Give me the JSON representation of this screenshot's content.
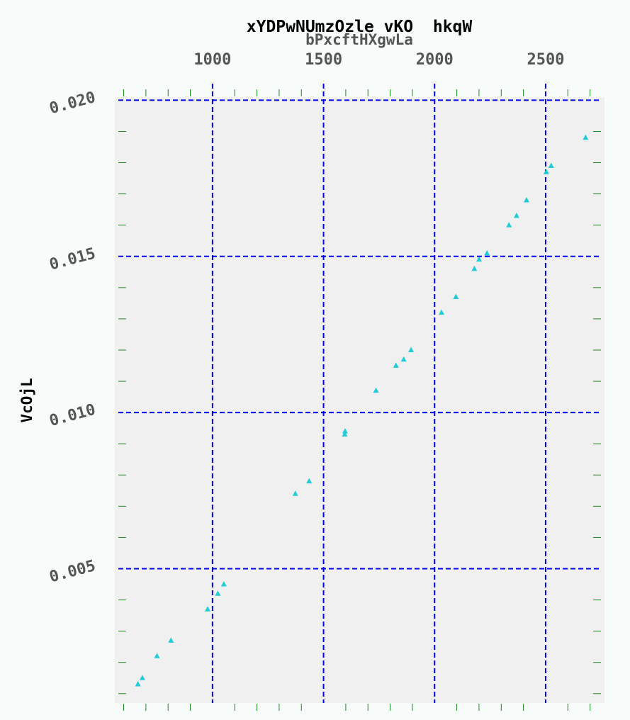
{
  "chart_data": {
    "type": "scatter",
    "title": "xYDPwNUmzOzle vKO  hkqW",
    "xlabel": "bPxcftHXgwLa",
    "ylabel": "VcOjL",
    "xlim": [
      560,
      2765
    ],
    "ylim": [
      0.0007,
      0.0201
    ],
    "x_ticks": [
      1000,
      1500,
      2000,
      2500
    ],
    "x_tick_labels": [
      "1000",
      "1500",
      "2000",
      "2500"
    ],
    "y_ticks": [
      0.005,
      0.01,
      0.015,
      0.02
    ],
    "y_tick_labels": [
      "0.005",
      "0.010",
      "0.015",
      "0.020"
    ],
    "x_axis_position": "top",
    "grid": true,
    "colors": {
      "marker": "#22ccd6",
      "grid": "#0000ee",
      "plot_background": "#f0f0f0",
      "page_background": "#f7fbf9",
      "minor_tick": "#1a8a1a"
    },
    "marker": "triangle-up",
    "x": [
      664,
      684,
      750,
      813,
      978,
      1024,
      1051,
      1373,
      1435,
      1595,
      1597,
      1736,
      1826,
      1861,
      1894,
      2031,
      2096,
      2179,
      2200,
      2236,
      2335,
      2369,
      2414,
      2503,
      2525,
      2680
    ],
    "y": [
      0.0013,
      0.0015,
      0.0022,
      0.0027,
      0.0037,
      0.0042,
      0.0045,
      0.0074,
      0.0078,
      0.0093,
      0.0094,
      0.0107,
      0.0115,
      0.0117,
      0.012,
      0.0132,
      0.0137,
      0.0146,
      0.0149,
      0.0151,
      0.016,
      0.0163,
      0.0168,
      0.0177,
      0.0179,
      0.0188
    ]
  }
}
